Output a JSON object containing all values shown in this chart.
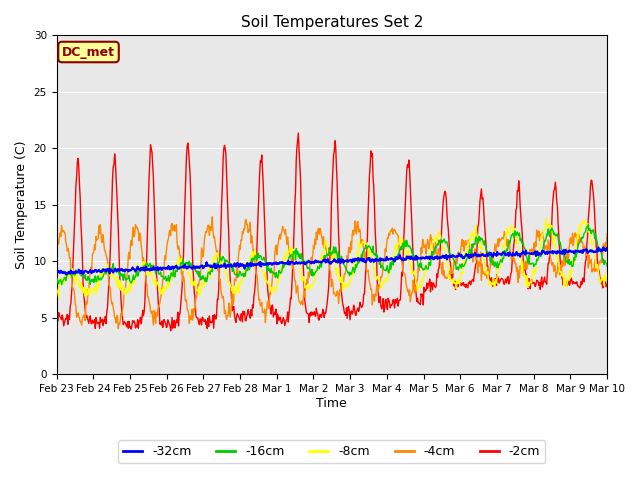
{
  "title": "Soil Temperatures Set 2",
  "xlabel": "Time",
  "ylabel": "Soil Temperature (C)",
  "ylim": [
    0,
    30
  ],
  "bg_color": "#e8e8e8",
  "fig_color": "#ffffff",
  "dc_met_label": "DC_met",
  "legend_labels": [
    "-32cm",
    "-16cm",
    "-8cm",
    "-4cm",
    "-2cm"
  ],
  "line_colors": [
    "#0000ff",
    "#00cc00",
    "#ffff00",
    "#ff8800",
    "#ff0000"
  ],
  "xtick_labels": [
    "Feb 23",
    "Feb 24",
    "Feb 25",
    "Feb 26",
    "Feb 27",
    "Feb 28",
    "Mar 1",
    "Mar 2",
    "Mar 3",
    "Mar 4",
    "Mar 5",
    "Mar 6",
    "Mar 7",
    "Mar 8",
    "Mar 9",
    "Mar 10"
  ],
  "num_days": 16,
  "points_per_day": 48
}
